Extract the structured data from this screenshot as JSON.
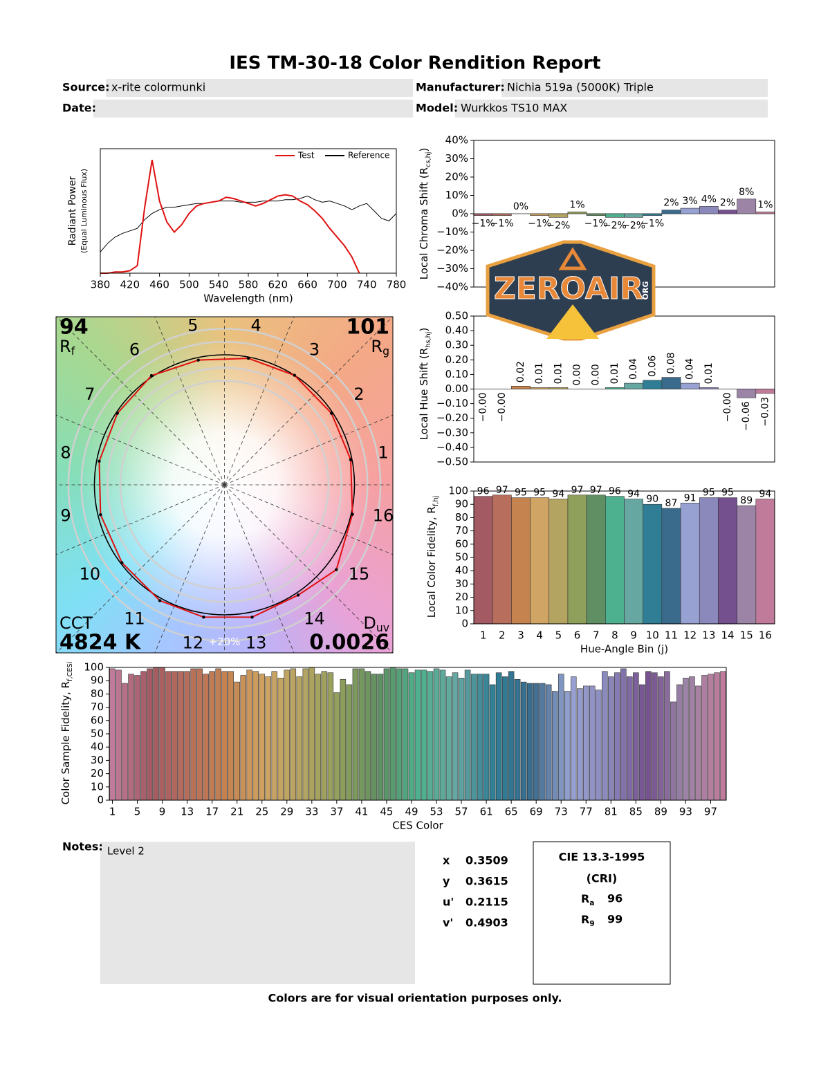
{
  "header": {
    "title": "IES TM-30-18 Color Rendition Report",
    "fields": [
      {
        "label": "Source:",
        "value": "x-rite colormunki"
      },
      {
        "label": "Manufacturer:",
        "value": "Nichia 519a (5000K) Triple"
      },
      {
        "label": "Date:"
      },
      {
        "label": "Model:",
        "value": "Wurkkos TS10 MAX"
      }
    ]
  },
  "chart_data": [
    {
      "type": "line",
      "xlabel": "Wavelength (nm)",
      "ylabel": "Radiant Power",
      "ylabel2": "(Equal Luminous Flux)",
      "legend": "upper right",
      "x": [
        380,
        390,
        400,
        410,
        420,
        430,
        440,
        450,
        460,
        470,
        480,
        490,
        500,
        510,
        520,
        530,
        540,
        550,
        560,
        570,
        580,
        590,
        600,
        610,
        620,
        630,
        640,
        650,
        660,
        670,
        680,
        690,
        700,
        710,
        720,
        730,
        740,
        750,
        760,
        770,
        780
      ],
      "series": [
        {
          "name": "Test",
          "color": "#e01010",
          "values": [
            0,
            0,
            0.01,
            0.01,
            0.02,
            0.06,
            0.53,
            0.91,
            0.58,
            0.41,
            0.33,
            0.39,
            0.48,
            0.54,
            0.56,
            0.57,
            0.58,
            0.61,
            0.6,
            0.58,
            0.56,
            0.54,
            0.56,
            0.59,
            0.62,
            0.63,
            0.62,
            0.58,
            0.55,
            0.5,
            0.44,
            0.36,
            0.29,
            0.22,
            0.13,
            0,
            null,
            null,
            null,
            null,
            null
          ]
        },
        {
          "name": "Reference",
          "color": "#000000",
          "values": [
            0.17,
            0.24,
            0.29,
            0.32,
            0.34,
            0.36,
            0.43,
            0.48,
            0.51,
            0.53,
            0.53,
            0.54,
            0.55,
            0.56,
            0.56,
            0.57,
            0.58,
            0.58,
            0.58,
            0.57,
            0.57,
            0.57,
            0.58,
            0.58,
            0.58,
            0.59,
            0.59,
            0.6,
            0.62,
            0.59,
            0.57,
            0.58,
            0.56,
            0.54,
            0.51,
            0.54,
            0.56,
            0.5,
            0.44,
            0.42,
            0.48
          ]
        }
      ],
      "xlim": [
        380,
        780
      ],
      "xticks": [
        380,
        420,
        460,
        500,
        540,
        580,
        620,
        660,
        700,
        740,
        780
      ],
      "ylim": [
        0,
        1
      ]
    },
    {
      "type": "bar",
      "label_style": "above",
      "ylabel": {
        "text": "Local Chroma Shift (R",
        "sub": "cs,hj",
        "end": ")"
      },
      "values": [
        -1,
        -1,
        0,
        -1,
        -2,
        1,
        -1,
        -2,
        -2,
        -1,
        2,
        3,
        4,
        2,
        8,
        1
      ],
      "value_labels": [
        "−1%",
        "−1%",
        "0%",
        "−1%",
        "−2%",
        "1%",
        "−1%",
        "−2%",
        "−2%",
        "−1%",
        "2%",
        "3%",
        "4%",
        "2%",
        "8%",
        "1%"
      ],
      "colors": [
        "#a35a62",
        "#b86e5c",
        "#c4834f",
        "#cfa464",
        "#b4a462",
        "#8f9f5c",
        "#5f8f62",
        "#4db08e",
        "#67a7a1",
        "#2f7e95",
        "#3b6b8c",
        "#98a2d2",
        "#8b88bc",
        "#74508e",
        "#9b84a6",
        "#c07b9a"
      ],
      "ylim": [
        -40,
        40
      ],
      "yticks": [
        {
          "value": -40,
          "label": "−40%"
        },
        {
          "value": -30,
          "label": "−30%"
        },
        {
          "value": -20,
          "label": "−20%"
        },
        {
          "value": -10,
          "label": "−10%"
        },
        {
          "value": 0,
          "label": "0%"
        },
        {
          "value": 10,
          "label": "10%"
        },
        {
          "value": 20,
          "label": "20%"
        },
        {
          "value": 30,
          "label": "30%"
        },
        {
          "value": 40,
          "label": "40%"
        }
      ]
    },
    {
      "type": "bar",
      "label_style": "rotated",
      "ylabel": {
        "text": "Local Hue Shift (R",
        "sub": "hs,hj",
        "end": ")"
      },
      "values": [
        -0.0,
        -0.0,
        0.02,
        0.01,
        0.01,
        0.0,
        0.0,
        0.01,
        0.04,
        0.06,
        0.08,
        0.04,
        0.01,
        -0.0,
        -0.06,
        -0.03
      ],
      "value_labels": [
        "−0.00",
        "−0.00",
        "0.02",
        "0.01",
        "0.01",
        "0.00",
        "0.00",
        "0.01",
        "0.04",
        "0.06",
        "0.08",
        "0.04",
        "0.01",
        "−0.00",
        "−0.06",
        "−0.03"
      ],
      "colors": [
        "#a35a62",
        "#b86e5c",
        "#c4834f",
        "#cfa464",
        "#b4a462",
        "#8f9f5c",
        "#5f8f62",
        "#4db08e",
        "#67a7a1",
        "#2f7e95",
        "#3b6b8c",
        "#98a2d2",
        "#8b88bc",
        "#74508e",
        "#9b84a6",
        "#c07b9a"
      ],
      "ylim": [
        -0.5,
        0.5
      ],
      "yticks": [
        {
          "value": -0.5,
          "label": "−0.50"
        },
        {
          "value": -0.4,
          "label": "−0.40"
        },
        {
          "value": -0.3,
          "label": "−0.30"
        },
        {
          "value": -0.2,
          "label": "−0.20"
        },
        {
          "value": -0.1,
          "label": "−0.10"
        },
        {
          "value": 0,
          "label": "0.00"
        },
        {
          "value": 0.1,
          "label": "0.10"
        },
        {
          "value": 0.2,
          "label": "0.20"
        },
        {
          "value": 0.3,
          "label": "0.30"
        },
        {
          "value": 0.4,
          "label": "0.40"
        },
        {
          "value": 0.5,
          "label": "0.50"
        }
      ]
    },
    {
      "type": "bar",
      "label_style": "top",
      "xlabel": "Hue-Angle Bin (j)",
      "ylabel": {
        "text": "Local Color Fidelity, R",
        "sub": "f,hj"
      },
      "categories": [
        1,
        2,
        3,
        4,
        5,
        6,
        7,
        8,
        9,
        10,
        11,
        12,
        13,
        14,
        15,
        16
      ],
      "values": [
        96,
        97,
        95,
        95,
        94,
        97,
        97,
        96,
        94,
        90,
        87,
        91,
        95,
        95,
        89,
        94
      ],
      "colors": [
        "#a35a62",
        "#b86e5c",
        "#c4834f",
        "#cfa464",
        "#b4a462",
        "#8f9f5c",
        "#5f8f62",
        "#4db08e",
        "#67a7a1",
        "#2f7e95",
        "#3b6b8c",
        "#98a2d2",
        "#8b88bc",
        "#74508e",
        "#9b84a6",
        "#c07b9a"
      ],
      "ylim": [
        0,
        100
      ],
      "yticks": [
        0,
        10,
        20,
        30,
        40,
        50,
        60,
        70,
        80,
        90,
        100
      ]
    },
    {
      "type": "bar",
      "xlabel": "CES Color",
      "ylabel": {
        "text": "Color Sample Fidelity, R",
        "sub": "f,CESi"
      },
      "x": [
        1,
        2,
        3,
        4,
        5,
        6,
        7,
        8,
        9,
        10,
        11,
        12,
        13,
        14,
        15,
        16,
        17,
        18,
        19,
        20,
        21,
        22,
        23,
        24,
        25,
        26,
        27,
        28,
        29,
        30,
        31,
        32,
        33,
        34,
        35,
        36,
        37,
        38,
        39,
        40,
        41,
        42,
        43,
        44,
        45,
        46,
        47,
        48,
        49,
        50,
        51,
        52,
        53,
        54,
        55,
        56,
        57,
        58,
        59,
        60,
        61,
        62,
        63,
        64,
        65,
        66,
        67,
        68,
        69,
        70,
        71,
        72,
        73,
        74,
        75,
        76,
        77,
        78,
        79,
        80,
        81,
        82,
        83,
        84,
        85,
        86,
        87,
        88,
        89,
        90,
        91,
        92,
        93,
        94,
        95,
        96,
        97,
        98,
        99
      ],
      "values": [
        99,
        98,
        88,
        95,
        94,
        97,
        99,
        100,
        100,
        97,
        97,
        97,
        97,
        99,
        99,
        95,
        97,
        99,
        97,
        97,
        89,
        94,
        98,
        97,
        95,
        93,
        97,
        92,
        98,
        99,
        93,
        99,
        100,
        95,
        97,
        96,
        81,
        91,
        87,
        99,
        99,
        97,
        95,
        95,
        99,
        100,
        99,
        99,
        96,
        98,
        98,
        97,
        99,
        98,
        93,
        96,
        92,
        98,
        95,
        95,
        95,
        87,
        96,
        93,
        97,
        91,
        89,
        88,
        88,
        88,
        87,
        82,
        95,
        82,
        93,
        84,
        86,
        86,
        83,
        97,
        93,
        96,
        99,
        93,
        96,
        87,
        97,
        96,
        93,
        97,
        74,
        87,
        92,
        93,
        86,
        94,
        95,
        96,
        97
      ],
      "color_scale": [
        "#c07b9a",
        "#a35a62",
        "#b86e5c",
        "#c4834f",
        "#cfa464",
        "#b4a462",
        "#8f9f5c",
        "#5f8f62",
        "#4db08e",
        "#67a7a1",
        "#2f7e95",
        "#3b6b8c",
        "#98a2d2",
        "#8b88bc",
        "#74508e",
        "#9b84a6",
        "#c07b9a"
      ],
      "xlim": [
        0.5,
        99.5
      ],
      "xticks": [
        1,
        5,
        9,
        13,
        17,
        21,
        25,
        29,
        33,
        37,
        41,
        45,
        49,
        53,
        57,
        61,
        65,
        69,
        73,
        77,
        81,
        85,
        89,
        93,
        97
      ],
      "ylim": [
        0,
        100
      ],
      "yticks": [
        0,
        10,
        20,
        30,
        40,
        50,
        60,
        70,
        80,
        90,
        100
      ]
    },
    {
      "type": "vector",
      "bins": [
        1,
        2,
        3,
        4,
        5,
        6,
        7,
        8,
        9,
        10,
        11,
        12,
        13,
        14,
        15,
        16
      ],
      "ring_label": "+20%",
      "test_color": "#e01010",
      "reference_color": "#000000",
      "metrics": [
        {
          "label": "R",
          "sub": "f",
          "value": 94,
          "corner": "top-left"
        },
        {
          "label": "R",
          "sub": "g",
          "value": 101,
          "corner": "top-right"
        },
        {
          "label": "CCT",
          "value": 4824,
          "value_label": "4824 K",
          "corner": "bottom-left"
        },
        {
          "label": "D",
          "sub": "uv",
          "value": 0.0026,
          "corner": "bottom-right"
        }
      ]
    }
  ],
  "watermark": {
    "text": "ZEROAIR",
    "sub": "ORG"
  },
  "notes": {
    "label": "Notes:",
    "text": "Level 2"
  },
  "chromaticity": [
    {
      "label": "x",
      "value": 0.3509
    },
    {
      "label": "y",
      "value": 0.3615
    },
    {
      "label": "u'",
      "value": 0.2115
    },
    {
      "label": "v'",
      "value": 0.4903
    }
  ],
  "cri": {
    "title": "CIE 13.3-1995",
    "subtitle": "(CRI)",
    "rows": [
      {
        "label": "R",
        "sub": "a",
        "value": 96
      },
      {
        "label": "R",
        "sub": "9",
        "value": 99
      }
    ]
  },
  "footer": "Colors are for visual orientation purposes only."
}
